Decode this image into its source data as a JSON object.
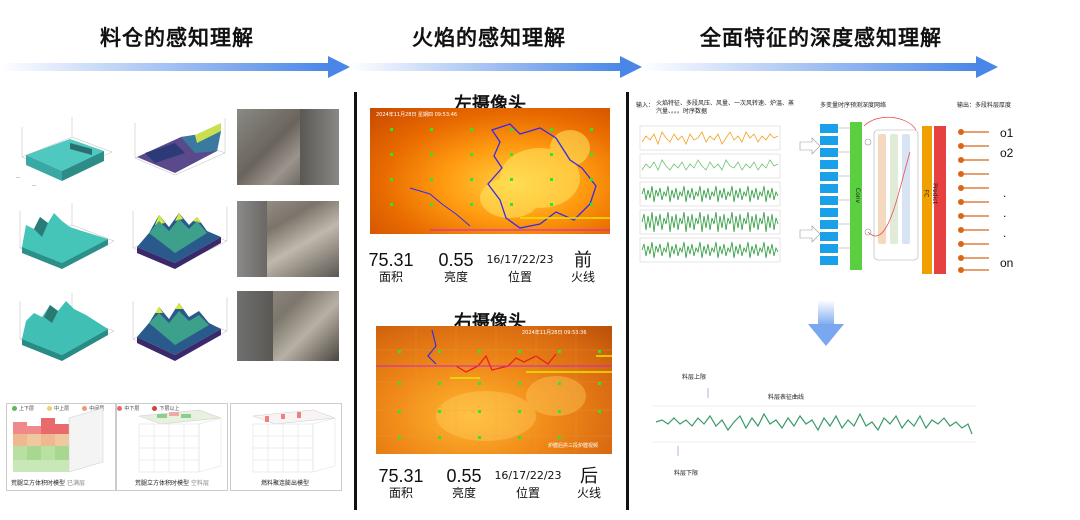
{
  "headers": {
    "left": "料仓的感知理解",
    "middle": "火焰的感知理解",
    "right": "全面特征的深度感知理解"
  },
  "left_panel": {
    "legend": [
      "上下层",
      "中上层",
      "中间层",
      "中下层",
      "下层以上"
    ],
    "box_captions": [
      "荒腿立方体积时模型",
      "荒腿立方体积时模型",
      "燃料聚连膨出模型"
    ],
    "box_sublabel_1": "已满层",
    "box_sublabel_2": "空料层"
  },
  "left_camera": {
    "title": "左摄像头",
    "timestamp": "2024年11月28日 星期四 09:53:46",
    "area_value": "75.31",
    "area_label": "面积",
    "brightness_value": "0.55",
    "brightness_label": "亮度",
    "position_value": "16/17/22/23",
    "position_label": "位置",
    "fireline_value": "前",
    "fireline_label": "火线"
  },
  "right_camera": {
    "title": "右摄像头",
    "timestamp": "2024年11月28日 09:53:36",
    "watermark": "炉膛后拱三段炉膛视频",
    "area_value": "75.31",
    "area_label": "面积",
    "brightness_value": "0.55",
    "brightness_label": "亮度",
    "position_value": "16/17/22/23",
    "position_label": "位置",
    "fireline_value": "后",
    "fireline_label": "火线"
  },
  "right_panel": {
    "input_label": "输入：",
    "input_text": "火焰特征、多段风压、风量、一次风转速、炉温、蒸汽量、。。。时序数据",
    "network_label": "多变量时序预测深度网络",
    "output_label": "输出：多段料层厚度",
    "conv_label": "Conv",
    "fc_label": "FC",
    "predict_label": "Predict",
    "outputs": [
      "o1",
      "o2",
      ".",
      ".",
      ".",
      "on"
    ],
    "curve_label": "料层表征曲线",
    "upper_label": "料层上限",
    "lower_label": "料层下限",
    "colors": {
      "arrow_blue": "#4a86e8",
      "waveform_green": "#2a9a3a",
      "waveform_orange": "#f0a020",
      "curve_green": "#3a9a6a",
      "fc_orange": "#f0a000",
      "predict_red": "#e84040"
    }
  }
}
